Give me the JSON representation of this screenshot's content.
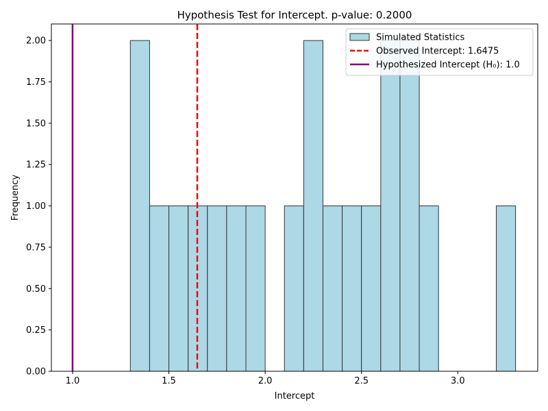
{
  "chart_data": {
    "type": "bar",
    "title": "Hypothesis Test for Intercept. p-value: 0.2000",
    "xlabel": "Intercept",
    "ylabel": "Frequency",
    "xlim": [
      0.89,
      3.415
    ],
    "ylim": [
      0,
      2.1
    ],
    "xticks": [
      1.0,
      1.5,
      2.0,
      2.5,
      3.0
    ],
    "xtick_labels": [
      "1.0",
      "1.5",
      "2.0",
      "2.5",
      "3.0"
    ],
    "yticks": [
      0,
      0.25,
      0.5,
      0.75,
      1.0,
      1.25,
      1.5,
      1.75,
      2.0
    ],
    "ytick_labels": [
      "0.00",
      "0.25",
      "0.50",
      "0.75",
      "1.00",
      "1.25",
      "1.50",
      "1.75",
      "2.00"
    ],
    "grid": false,
    "legend_position": "top-right",
    "bin_width": 0.1,
    "bins": [
      {
        "x0": 1.3,
        "x1": 1.4,
        "value": 2
      },
      {
        "x0": 1.4,
        "x1": 1.5,
        "value": 1
      },
      {
        "x0": 1.5,
        "x1": 1.6,
        "value": 1
      },
      {
        "x0": 1.6,
        "x1": 1.7,
        "value": 1
      },
      {
        "x0": 1.7,
        "x1": 1.8,
        "value": 1
      },
      {
        "x0": 1.8,
        "x1": 1.9,
        "value": 1
      },
      {
        "x0": 1.9,
        "x1": 2.0,
        "value": 1
      },
      {
        "x0": 2.1,
        "x1": 2.2,
        "value": 1
      },
      {
        "x0": 2.2,
        "x1": 2.3,
        "value": 2
      },
      {
        "x0": 2.3,
        "x1": 2.4,
        "value": 1
      },
      {
        "x0": 2.4,
        "x1": 2.5,
        "value": 1
      },
      {
        "x0": 2.5,
        "x1": 2.6,
        "value": 1
      },
      {
        "x0": 2.6,
        "x1": 2.7,
        "value": 2
      },
      {
        "x0": 2.7,
        "x1": 2.8,
        "value": 2
      },
      {
        "x0": 2.8,
        "x1": 2.9,
        "value": 1
      },
      {
        "x0": 3.2,
        "x1": 3.3,
        "value": 1
      }
    ],
    "series": [
      {
        "name": "Simulated Statistics",
        "kind": "histogram",
        "color": "#add8e6",
        "edgecolor": "#333333"
      },
      {
        "name": "Observed Intercept: 1.6475",
        "kind": "vline",
        "x": 1.6475,
        "color": "#ff0000",
        "style": "dashed"
      },
      {
        "name": "Hypothesized Intercept (H₀): 1.0",
        "kind": "vline",
        "x": 1.0,
        "color": "#800080",
        "style": "solid"
      }
    ]
  }
}
